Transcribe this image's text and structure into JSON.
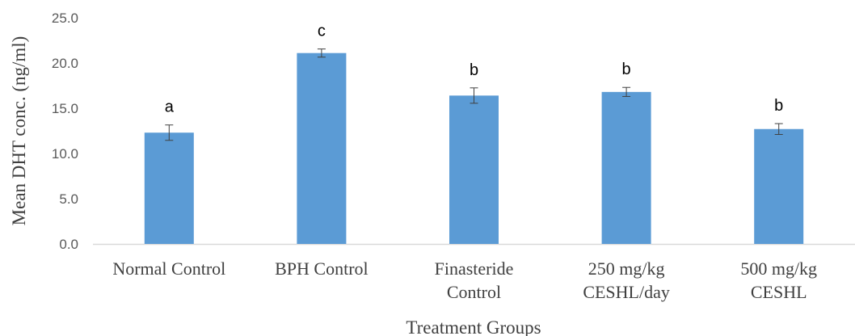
{
  "chart_data": {
    "type": "bar",
    "title": "",
    "xlabel": "Treatment Groups",
    "ylabel": "Mean DHT conc. (ng/ml)",
    "ylim": [
      0,
      25
    ],
    "yticks": [
      "0.0",
      "5.0",
      "10.0",
      "15.0",
      "20.0",
      "25.0"
    ],
    "grid": false,
    "legend": "none",
    "bar_color": "#5b9bd5",
    "categories": [
      [
        "Normal Control"
      ],
      [
        "BPH Control"
      ],
      [
        "Finasteride",
        "Control"
      ],
      [
        "250 mg/kg",
        "CESHL/day"
      ],
      [
        "500 mg/kg",
        "CESHL"
      ]
    ],
    "values": [
      12.3,
      21.1,
      16.4,
      16.8,
      12.7
    ],
    "errors": [
      0.85,
      0.45,
      0.85,
      0.5,
      0.6
    ],
    "significance_labels": [
      "a",
      "c",
      "b",
      "b",
      "b"
    ]
  }
}
